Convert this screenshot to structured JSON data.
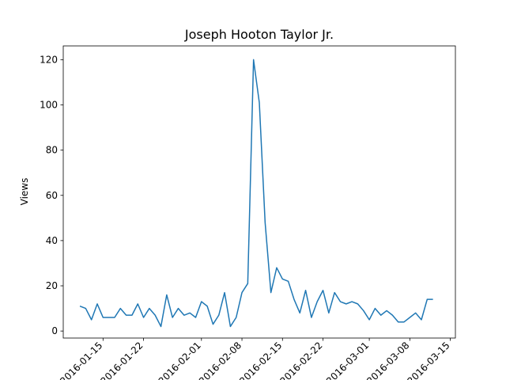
{
  "chart_data": {
    "type": "line",
    "title": "Joseph Hooton Taylor Jr.",
    "xlabel": "",
    "ylabel": "Views",
    "ylim": [
      -3.1,
      126.1
    ],
    "xlim": [
      "2016-01-08T03:00",
      "2016-03-15T21:00"
    ],
    "x_ticks": [
      "2016-01-15",
      "2016-01-22",
      "2016-02-01",
      "2016-02-08",
      "2016-02-15",
      "2016-02-22",
      "2016-03-01",
      "2016-03-08",
      "2016-03-15"
    ],
    "y_ticks": [
      0,
      20,
      40,
      60,
      80,
      100,
      120
    ],
    "grid": false,
    "line_color": "#1f77b4",
    "series": [
      {
        "x": [
          "2016-01-11",
          "2016-01-12",
          "2016-01-13",
          "2016-01-14",
          "2016-01-15",
          "2016-01-16",
          "2016-01-17",
          "2016-01-18",
          "2016-01-19",
          "2016-01-20",
          "2016-01-21",
          "2016-01-22",
          "2016-01-23",
          "2016-01-24",
          "2016-01-25",
          "2016-01-26",
          "2016-01-27",
          "2016-01-28",
          "2016-01-29",
          "2016-01-30",
          "2016-01-31",
          "2016-02-01",
          "2016-02-02",
          "2016-02-03",
          "2016-02-04",
          "2016-02-05",
          "2016-02-06",
          "2016-02-07",
          "2016-02-08",
          "2016-02-09",
          "2016-02-10",
          "2016-02-11",
          "2016-02-12",
          "2016-02-13",
          "2016-02-14",
          "2016-02-15",
          "2016-02-16",
          "2016-02-17",
          "2016-02-18",
          "2016-02-19",
          "2016-02-20",
          "2016-02-21",
          "2016-02-22",
          "2016-02-23",
          "2016-02-24",
          "2016-02-25",
          "2016-02-26",
          "2016-02-27",
          "2016-02-28",
          "2016-02-29",
          "2016-03-01",
          "2016-03-02",
          "2016-03-03",
          "2016-03-04",
          "2016-03-05",
          "2016-03-06",
          "2016-03-07",
          "2016-03-08",
          "2016-03-09",
          "2016-03-10",
          "2016-03-11",
          "2016-03-12"
        ],
        "values": [
          11,
          10,
          5,
          12,
          6,
          6,
          6,
          10,
          7,
          7,
          12,
          6,
          10,
          7,
          2,
          16,
          6,
          10,
          7,
          8,
          6,
          13,
          11,
          3,
          7,
          17,
          2,
          6,
          17,
          21,
          120,
          101,
          48,
          17,
          28,
          23,
          22,
          14,
          8,
          18,
          6,
          13,
          18,
          8,
          17,
          13,
          12,
          13,
          12,
          9,
          5,
          10,
          7,
          9,
          7,
          4,
          4,
          6,
          8,
          5,
          14,
          14
        ]
      }
    ]
  }
}
